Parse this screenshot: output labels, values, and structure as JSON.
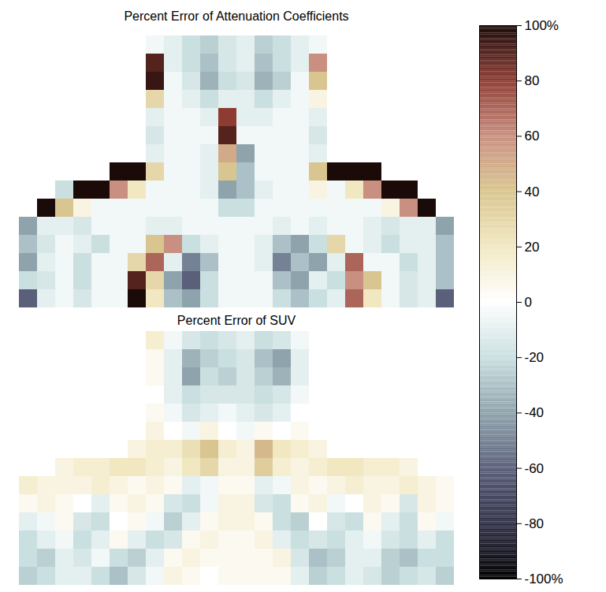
{
  "chart_data": {
    "type": "heatmap",
    "tick_labels": false,
    "colorbar": {
      "lim": [
        -100,
        100
      ],
      "ticks": [
        {
          "value": 100,
          "label": "100%"
        },
        80,
        60,
        40,
        20,
        0,
        -20,
        -40,
        -60,
        -80,
        {
          "value": -100,
          "label": "-100%"
        }
      ]
    },
    "panels": [
      {
        "title": "Percent Error of Attenuation Coefficients",
        "cells": [
          [
            null,
            null,
            null,
            null,
            null,
            null,
            null,
            -5,
            -10,
            -20,
            -25,
            -15,
            -10,
            -25,
            -20,
            -10,
            -5,
            null,
            null,
            null,
            null,
            null,
            null,
            null
          ],
          [
            null,
            null,
            null,
            null,
            null,
            null,
            null,
            90,
            -10,
            -20,
            -30,
            -15,
            -10,
            -30,
            -20,
            -10,
            60,
            null,
            null,
            null,
            null,
            null,
            null,
            null
          ],
          [
            null,
            null,
            null,
            null,
            null,
            null,
            null,
            95,
            -5,
            -15,
            -35,
            -20,
            -15,
            -35,
            -25,
            -5,
            40,
            null,
            null,
            null,
            null,
            null,
            null,
            null
          ],
          [
            null,
            null,
            null,
            null,
            null,
            null,
            null,
            30,
            -5,
            -10,
            -20,
            -10,
            -10,
            -20,
            -10,
            -5,
            10,
            null,
            null,
            null,
            null,
            null,
            null,
            null
          ],
          [
            null,
            null,
            null,
            null,
            null,
            null,
            null,
            -10,
            -5,
            -5,
            -10,
            80,
            -10,
            -10,
            -5,
            -5,
            -10,
            null,
            null,
            null,
            null,
            null,
            null,
            null
          ],
          [
            null,
            null,
            null,
            null,
            null,
            null,
            null,
            -15,
            -5,
            -5,
            -5,
            90,
            -5,
            -5,
            -5,
            -5,
            -15,
            null,
            null,
            null,
            null,
            null,
            null,
            null
          ],
          [
            null,
            null,
            null,
            null,
            null,
            null,
            null,
            -10,
            -5,
            -5,
            -10,
            50,
            -40,
            -5,
            -5,
            -5,
            -10,
            null,
            null,
            null,
            null,
            null,
            null,
            null
          ],
          [
            null,
            null,
            null,
            null,
            null,
            100,
            100,
            30,
            -5,
            -5,
            -10,
            40,
            -30,
            -5,
            -5,
            -5,
            40,
            100,
            100,
            100,
            null,
            null,
            null,
            null
          ],
          [
            null,
            null,
            -20,
            100,
            100,
            60,
            20,
            -5,
            -5,
            -5,
            -10,
            -40,
            -30,
            -10,
            -5,
            -5,
            10,
            -5,
            20,
            60,
            100,
            100,
            null,
            null
          ],
          [
            null,
            100,
            40,
            10,
            -5,
            -5,
            -5,
            -5,
            -5,
            -5,
            -5,
            -20,
            -20,
            -5,
            -5,
            -5,
            -5,
            -5,
            -5,
            -5,
            10,
            60,
            100,
            null
          ],
          [
            -40,
            -10,
            -10,
            -15,
            -5,
            -5,
            -5,
            -10,
            -10,
            -5,
            -5,
            -5,
            -5,
            -5,
            -10,
            -5,
            -10,
            -5,
            -5,
            -10,
            -15,
            -10,
            -10,
            -40
          ],
          [
            -30,
            -15,
            -5,
            -10,
            -20,
            -5,
            -5,
            40,
            60,
            -20,
            -10,
            -5,
            -5,
            -10,
            -30,
            -40,
            -20,
            30,
            -5,
            -10,
            -20,
            -10,
            -10,
            -30
          ],
          [
            -40,
            -10,
            -5,
            -20,
            -5,
            -5,
            30,
            70,
            -10,
            -50,
            -30,
            -5,
            -5,
            -10,
            -50,
            -30,
            -40,
            -10,
            70,
            -5,
            -5,
            -20,
            -10,
            -30
          ],
          [
            -20,
            -15,
            -5,
            -20,
            -5,
            -5,
            90,
            30,
            -40,
            -60,
            -20,
            -5,
            -5,
            -5,
            -30,
            -40,
            -10,
            -20,
            60,
            40,
            -5,
            -15,
            -10,
            -30
          ],
          [
            -60,
            -10,
            -5,
            -15,
            -5,
            -5,
            100,
            20,
            -30,
            -40,
            -20,
            -5,
            -5,
            -5,
            -20,
            -30,
            -20,
            -10,
            70,
            20,
            -5,
            -15,
            -10,
            -60
          ]
        ]
      },
      {
        "title": "Percent Error of SUV",
        "cells": [
          [
            null,
            null,
            null,
            null,
            null,
            null,
            null,
            15,
            -5,
            -15,
            -20,
            -15,
            -10,
            -20,
            -15,
            -5,
            null,
            null,
            null,
            null,
            null,
            null,
            null,
            null
          ],
          [
            null,
            null,
            null,
            null,
            null,
            null,
            null,
            5,
            -10,
            -35,
            -25,
            -20,
            -15,
            -30,
            -40,
            -10,
            null,
            null,
            null,
            null,
            null,
            null,
            null,
            null
          ],
          [
            null,
            null,
            null,
            null,
            null,
            null,
            null,
            5,
            -10,
            -40,
            -20,
            -25,
            -15,
            -25,
            -35,
            -10,
            null,
            null,
            null,
            null,
            null,
            null,
            null,
            null
          ],
          [
            null,
            null,
            null,
            null,
            null,
            null,
            null,
            0,
            -10,
            -20,
            -15,
            -15,
            -15,
            -20,
            -15,
            -5,
            null,
            null,
            null,
            null,
            null,
            null,
            null,
            null
          ],
          [
            null,
            null,
            null,
            null,
            null,
            null,
            null,
            5,
            -5,
            -15,
            -10,
            -5,
            -10,
            -15,
            -10,
            0,
            null,
            null,
            null,
            null,
            null,
            null,
            null,
            null
          ],
          [
            null,
            null,
            null,
            null,
            null,
            null,
            null,
            10,
            0,
            -5,
            10,
            0,
            -5,
            5,
            0,
            5,
            null,
            null,
            null,
            null,
            null,
            null,
            null,
            null
          ],
          [
            null,
            null,
            null,
            null,
            null,
            null,
            10,
            15,
            15,
            25,
            40,
            15,
            10,
            45,
            20,
            15,
            10,
            null,
            null,
            null,
            null,
            null,
            null,
            null
          ],
          [
            null,
            null,
            10,
            15,
            15,
            20,
            20,
            15,
            10,
            20,
            30,
            10,
            10,
            35,
            15,
            10,
            15,
            20,
            20,
            15,
            15,
            10,
            null,
            null
          ],
          [
            15,
            10,
            10,
            10,
            15,
            10,
            5,
            10,
            5,
            -10,
            -5,
            5,
            5,
            -10,
            -5,
            10,
            5,
            10,
            15,
            10,
            10,
            15,
            10,
            5
          ],
          [
            5,
            10,
            5,
            0,
            -10,
            5,
            10,
            5,
            -15,
            -20,
            -5,
            10,
            10,
            -15,
            -20,
            5,
            10,
            -5,
            0,
            10,
            5,
            -15,
            10,
            5
          ],
          [
            -10,
            -5,
            5,
            -15,
            -20,
            0,
            5,
            -5,
            -25,
            -10,
            5,
            10,
            10,
            5,
            -20,
            -25,
            0,
            -15,
            -20,
            5,
            -10,
            -20,
            5,
            -5
          ],
          [
            -20,
            -10,
            -5,
            -20,
            -10,
            5,
            -10,
            -20,
            -15,
            5,
            10,
            5,
            5,
            10,
            -10,
            -20,
            -15,
            -20,
            -10,
            -5,
            -15,
            -20,
            -10,
            -20
          ],
          [
            -20,
            -25,
            -10,
            -15,
            -5,
            -20,
            -25,
            -10,
            5,
            10,
            5,
            5,
            5,
            5,
            10,
            -15,
            -30,
            -25,
            -10,
            -10,
            -25,
            -30,
            -20,
            -20
          ],
          [
            -25,
            -20,
            -10,
            -10,
            -20,
            -30,
            -15,
            -5,
            10,
            5,
            0,
            5,
            5,
            5,
            5,
            -10,
            -25,
            -20,
            -10,
            -15,
            -25,
            -20,
            -15,
            -25
          ]
        ]
      }
    ]
  }
}
